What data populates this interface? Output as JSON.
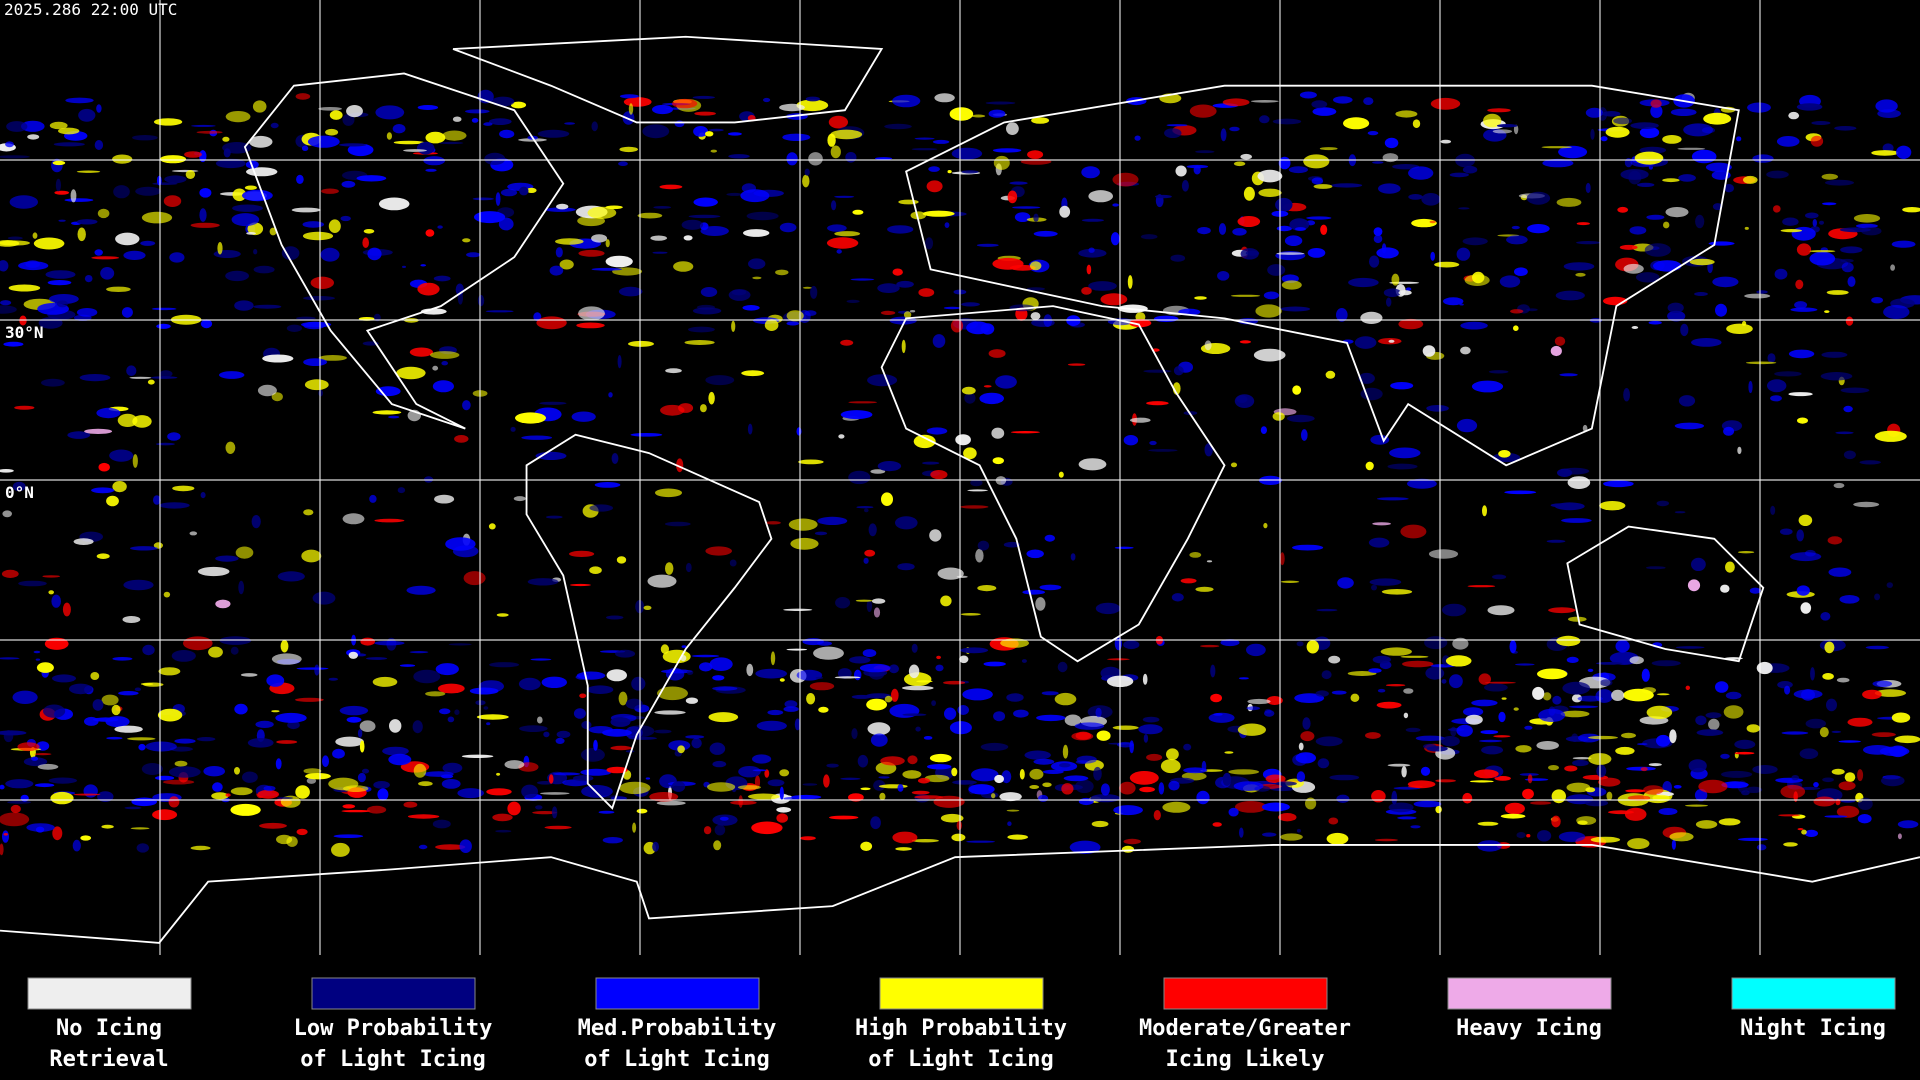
{
  "timestamp": "2025.286 22:00 UTC",
  "lat_labels": [
    "30°N",
    "0°N"
  ],
  "legend": [
    {
      "label_lines": [
        "No Icing",
        "Retrieval"
      ],
      "color": "#eeeeee"
    },
    {
      "label_lines": [
        "Low Probability",
        "of Light Icing"
      ],
      "color": "#000080"
    },
    {
      "label_lines": [
        "Med.Probability",
        "of Light Icing"
      ],
      "color": "#0000ff"
    },
    {
      "label_lines": [
        "High Probability",
        "of Light Icing"
      ],
      "color": "#ffff00"
    },
    {
      "label_lines": [
        "Moderate/Greater",
        "Icing Likely"
      ],
      "color": "#ff0000"
    },
    {
      "label_lines": [
        "Heavy Icing"
      ],
      "color": "#eeaae8"
    },
    {
      "label_lines": [
        "Night Icing"
      ],
      "color": "#00ffff"
    }
  ]
}
